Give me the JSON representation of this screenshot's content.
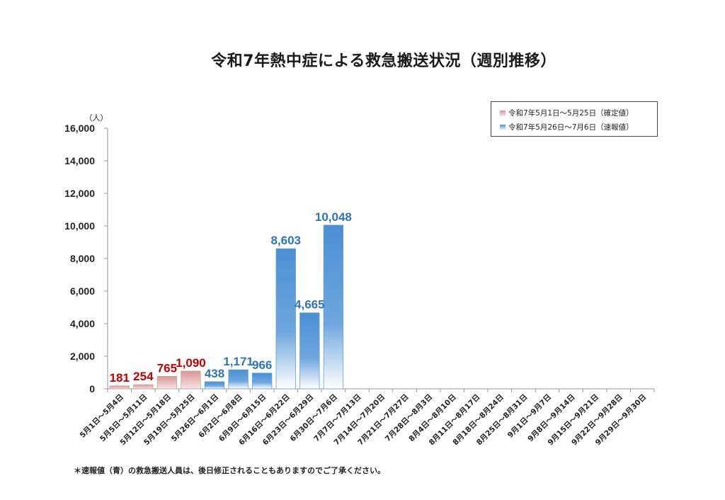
{
  "title": "令和7年熱中症による救急搬送状況（週別推移）",
  "footnote": "＊速報値（青）の救急搬送人員は、後日修正されることもありますのでご了承ください。",
  "colors": {
    "confirmed": "#d99694",
    "confirmed_label": "#c00000",
    "preliminary": "#4a8fd4",
    "preliminary_label": "#2e75b6",
    "axis": "#999999"
  },
  "chart_data": {
    "type": "bar",
    "ylabel": "（人）",
    "ylim": [
      0,
      16000
    ],
    "yticks": [
      "0",
      "2,000",
      "4,000",
      "6,000",
      "8,000",
      "10,000",
      "12,000",
      "14,000",
      "16,000"
    ],
    "categories": [
      "5月1日～5月4日",
      "5月5日～5月11日",
      "5月12日～5月18日",
      "5月19日～5月25日",
      "5月26日～6月1日",
      "6月2日～6月8日",
      "6月9日～6月15日",
      "6月16日～6月22日",
      "6月23日～6月29日",
      "6月30日～7月6日",
      "7月7日～7月13日",
      "7月14日～7月20日",
      "7月21日～7月27日",
      "7月28日～8月3日",
      "8月4日～8月10日",
      "8月11日～8月17日",
      "8月18日～8月24日",
      "8月25日～8月31日",
      "9月1日～9月7日",
      "9月8日～9月14日",
      "9月15日～9月21日",
      "9月22日～9月28日",
      "9月29日～9月30日"
    ],
    "series": [
      {
        "name": "令和7年5月1日～5月25日（確定値）",
        "values": [
          181,
          254,
          765,
          1090,
          null,
          null,
          null,
          null,
          null,
          null,
          null,
          null,
          null,
          null,
          null,
          null,
          null,
          null,
          null,
          null,
          null,
          null,
          null
        ],
        "labels": [
          "181",
          "254",
          "765",
          "1,090"
        ]
      },
      {
        "name": "令和7年5月26日～7月6日（速報値）",
        "values": [
          null,
          null,
          null,
          null,
          438,
          1171,
          966,
          8603,
          4665,
          10048,
          null,
          null,
          null,
          null,
          null,
          null,
          null,
          null,
          null,
          null,
          null,
          null,
          null
        ],
        "labels": [
          "438",
          "1,171",
          "966",
          "8,603",
          "4,665",
          "10,048"
        ]
      }
    ],
    "legend_position": "top-right"
  }
}
